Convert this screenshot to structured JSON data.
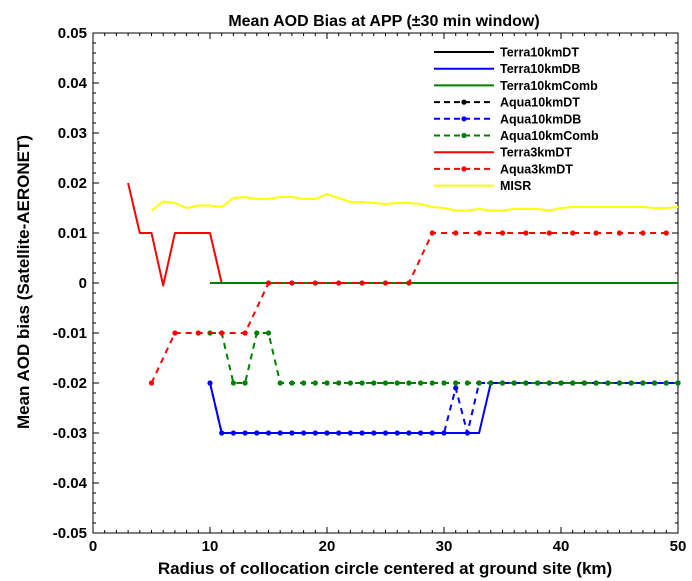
{
  "chart_data": {
    "type": "line",
    "title": "Mean AOD Bias at APP (±30 min window)",
    "xlabel": "Radius of collocation circle centered at ground site (km)",
    "ylabel": "Mean AOD bias (Satellite-AERONET)",
    "xlim": [
      0,
      50
    ],
    "ylim": [
      -0.05,
      0.05
    ],
    "xticks": [
      0,
      10,
      20,
      30,
      40,
      50
    ],
    "yticks": [
      -0.05,
      -0.04,
      -0.03,
      -0.02,
      -0.01,
      0,
      0.01,
      0.02,
      0.03,
      0.04,
      0.05
    ],
    "xtick_labels": [
      "0",
      "10",
      "20",
      "30",
      "40",
      "50"
    ],
    "ytick_labels": [
      "-0.05",
      "-0.04",
      "-0.03",
      "-0.02",
      "-0.01",
      "0",
      "0.01",
      "0.02",
      "0.03",
      "0.04",
      "0.05"
    ],
    "grid": false,
    "legend_position": "top-right",
    "series": [
      {
        "name": "Terra10kmDT",
        "color": "#000000",
        "dash": "solid",
        "markers": false,
        "x": [
          10,
          20,
          30,
          40,
          50
        ],
        "y": [
          0,
          0,
          0,
          0,
          0
        ]
      },
      {
        "name": "Terra10kmDB",
        "color": "#0000ff",
        "dash": "solid",
        "markers": false,
        "x": [
          10,
          11,
          12,
          13,
          14,
          15,
          16,
          17,
          18,
          19,
          20,
          21,
          22,
          23,
          24,
          25,
          26,
          27,
          28,
          29,
          30,
          31,
          32,
          33,
          34,
          35,
          40,
          45,
          50
        ],
        "y": [
          -0.02,
          -0.03,
          -0.03,
          -0.03,
          -0.03,
          -0.03,
          -0.03,
          -0.03,
          -0.03,
          -0.03,
          -0.03,
          -0.03,
          -0.03,
          -0.03,
          -0.03,
          -0.03,
          -0.03,
          -0.03,
          -0.03,
          -0.03,
          -0.03,
          -0.03,
          -0.03,
          -0.03,
          -0.02,
          -0.02,
          -0.02,
          -0.02,
          -0.02
        ]
      },
      {
        "name": "Terra10kmComb",
        "color": "#008000",
        "dash": "solid",
        "markers": false,
        "x": [
          10,
          20,
          30,
          40,
          47,
          50
        ],
        "y": [
          0,
          0,
          0,
          0,
          0,
          0
        ]
      },
      {
        "name": "Aqua10kmDT",
        "color": "#000000",
        "dash": "dashed",
        "markers": true,
        "x": [],
        "y": []
      },
      {
        "name": "Aqua10kmDB",
        "color": "#0000ff",
        "dash": "dashed",
        "markers": true,
        "x": [
          10,
          11,
          12,
          13,
          14,
          15,
          16,
          17,
          18,
          19,
          20,
          21,
          22,
          23,
          24,
          25,
          26,
          27,
          28,
          29,
          30,
          31,
          32,
          33,
          34,
          35,
          36,
          37,
          38,
          39,
          40,
          41,
          42,
          43,
          44,
          45,
          46,
          47,
          48,
          49,
          50
        ],
        "y": [
          -0.02,
          -0.03,
          -0.03,
          -0.03,
          -0.03,
          -0.03,
          -0.03,
          -0.03,
          -0.03,
          -0.03,
          -0.03,
          -0.03,
          -0.03,
          -0.03,
          -0.03,
          -0.03,
          -0.03,
          -0.03,
          -0.03,
          -0.03,
          -0.03,
          -0.021,
          -0.03,
          -0.02,
          -0.02,
          -0.02,
          -0.02,
          -0.02,
          -0.02,
          -0.02,
          -0.02,
          -0.02,
          -0.02,
          -0.02,
          -0.02,
          -0.02,
          -0.02,
          -0.02,
          -0.02,
          -0.02,
          -0.02
        ]
      },
      {
        "name": "Aqua10kmComb",
        "color": "#008000",
        "dash": "dashed",
        "markers": true,
        "x": [
          10,
          11,
          12,
          13,
          14,
          15,
          16,
          17,
          18,
          19,
          20,
          21,
          22,
          23,
          24,
          25,
          26,
          27,
          28,
          29,
          30,
          31,
          32,
          33,
          34,
          35,
          36,
          37,
          38,
          39,
          40,
          41,
          42,
          43,
          44,
          45,
          46,
          47,
          48,
          49,
          50
        ],
        "y": [
          -0.01,
          -0.01,
          -0.02,
          -0.02,
          -0.01,
          -0.01,
          -0.02,
          -0.02,
          -0.02,
          -0.02,
          -0.02,
          -0.02,
          -0.02,
          -0.02,
          -0.02,
          -0.02,
          -0.02,
          -0.02,
          -0.02,
          -0.02,
          -0.02,
          -0.02,
          -0.02,
          -0.02,
          -0.02,
          -0.02,
          -0.02,
          -0.02,
          -0.02,
          -0.02,
          -0.02,
          -0.02,
          -0.02,
          -0.02,
          -0.02,
          -0.02,
          -0.02,
          -0.02,
          -0.02,
          -0.02,
          -0.02
        ]
      },
      {
        "name": "Terra3kmDT",
        "color": "#ff0000",
        "dash": "solid",
        "markers": false,
        "x": [
          3,
          4,
          5,
          6,
          7,
          8,
          9,
          10,
          11,
          20,
          30,
          40,
          47
        ],
        "y": [
          0.02,
          0.01,
          0.01,
          -0.0005,
          0.01,
          0.01,
          0.01,
          0.01,
          0,
          0,
          0,
          0,
          0
        ]
      },
      {
        "name": "Aqua3kmDT",
        "color": "#ff0000",
        "dash": "dashed",
        "markers": true,
        "x": [
          5,
          7,
          9,
          11,
          13,
          15,
          17,
          19,
          21,
          23,
          25,
          27,
          29,
          31,
          33,
          35,
          37,
          39,
          41,
          43,
          45,
          47,
          49
        ],
        "y": [
          -0.02,
          -0.01,
          -0.01,
          -0.01,
          -0.01,
          0,
          0,
          0,
          0,
          0,
          0,
          0,
          0.01,
          0.01,
          0.01,
          0.01,
          0.01,
          0.01,
          0.01,
          0.01,
          0.01,
          0.01,
          0.01
        ]
      },
      {
        "name": "MISR",
        "color": "#ffff00",
        "dash": "solid",
        "markers": false,
        "x": [
          5,
          6,
          7,
          8,
          9,
          10,
          11,
          12,
          13,
          14,
          15,
          16,
          17,
          18,
          19,
          20,
          21,
          22,
          23,
          24,
          25,
          26,
          27,
          28,
          29,
          30,
          31,
          32,
          33,
          34,
          35,
          36,
          37,
          38,
          39,
          40,
          41,
          42,
          43,
          44,
          45,
          46,
          47,
          48,
          49,
          50
        ],
        "y": [
          0.0145,
          0.0163,
          0.016,
          0.015,
          0.0155,
          0.0155,
          0.0152,
          0.017,
          0.0172,
          0.0168,
          0.0168,
          0.0172,
          0.0172,
          0.0168,
          0.0168,
          0.0178,
          0.017,
          0.0162,
          0.0162,
          0.016,
          0.0158,
          0.016,
          0.016,
          0.0158,
          0.0152,
          0.015,
          0.0145,
          0.0145,
          0.0148,
          0.0145,
          0.0145,
          0.0148,
          0.0148,
          0.0148,
          0.0145,
          0.015,
          0.0152,
          0.0152,
          0.0152,
          0.0152,
          0.0152,
          0.0152,
          0.0152,
          0.015,
          0.015,
          0.0152
        ]
      }
    ]
  }
}
